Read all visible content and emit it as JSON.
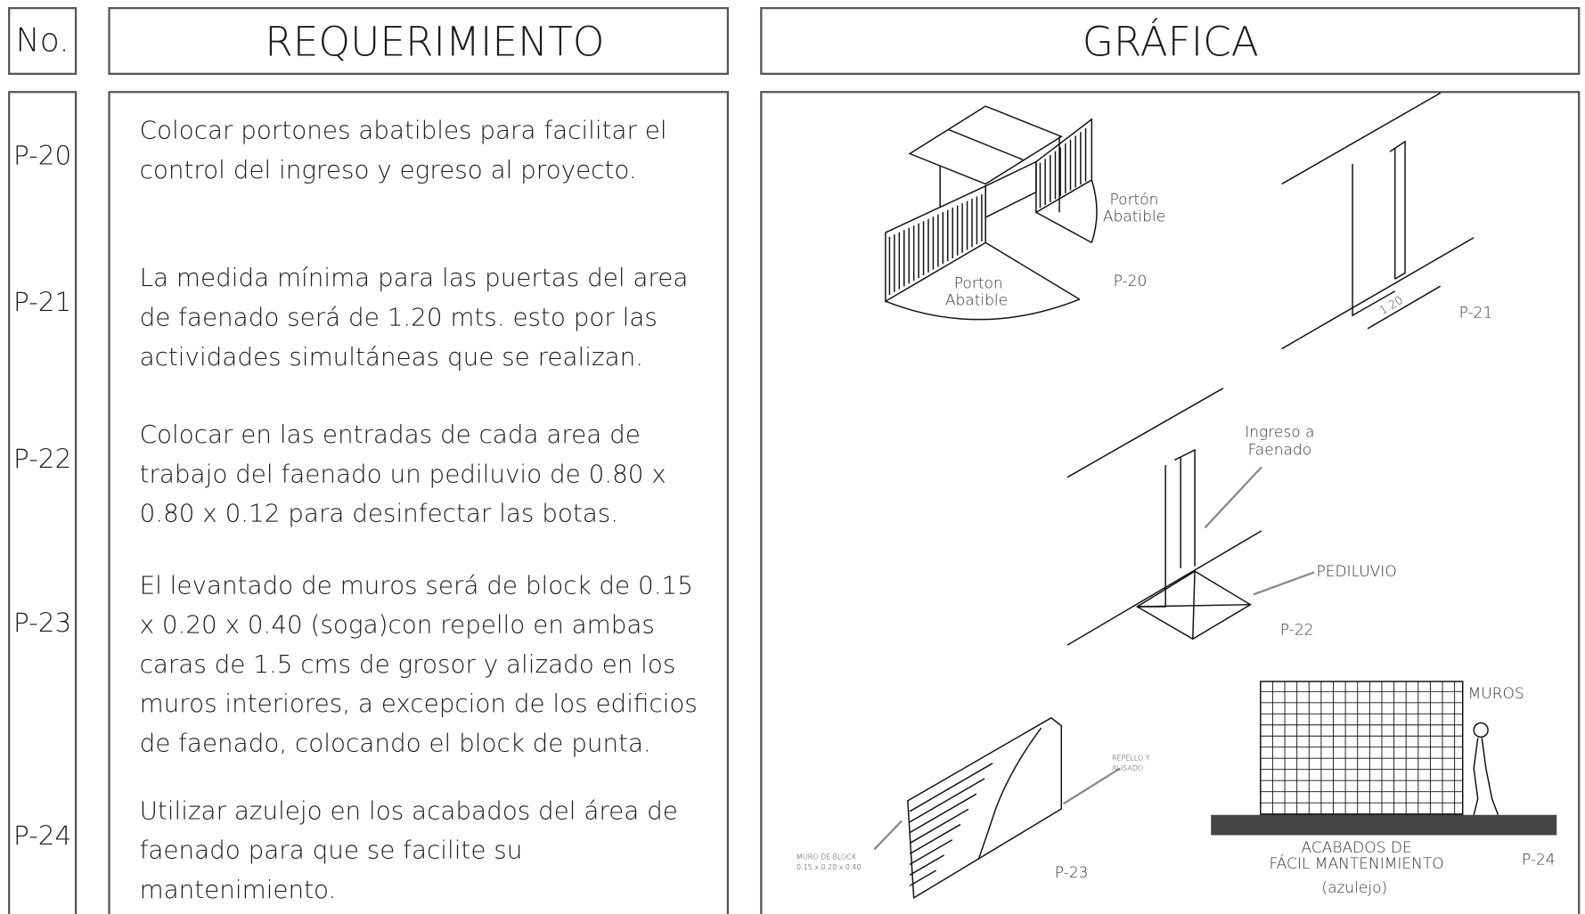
{
  "header": {
    "number": "No.",
    "requirement": "REQUERIMIENTO",
    "graphic": "GRÁFICA"
  },
  "rows": [
    {
      "code": "P-20",
      "lines": [
        "Colocar portones abatibles para facilitar el",
        "control del ingreso y egreso al proyecto."
      ]
    },
    {
      "code": "P-21",
      "lines": [
        "La medida mínima para las puertas del area",
        "de faenado será de 1.20 mts. esto por las",
        "actividades simultáneas que se realizan."
      ]
    },
    {
      "code": "P-22",
      "lines": [
        "Colocar en las entradas de cada area de",
        "trabajo del faenado un pediluvio de 0.80 x",
        "0.80 x 0.12 para desinfectar las botas."
      ]
    },
    {
      "code": "P-23",
      "lines": [
        "El levantado de muros será de block de 0.15",
        "x 0.20 x 0.40 (soga)con repello en ambas",
        "caras de 1.5 cms de grosor y alizado en los",
        "muros interiores, a excepcion de los edificios",
        "de faenado, colocando el block de punta."
      ]
    },
    {
      "code": "P-24",
      "lines": [
        "Utilizar azulejo en los acabados del área de",
        "faenado para que se facilite su",
        "mantenimiento."
      ]
    }
  ],
  "graphics": {
    "p20": {
      "gate_label": [
        "Portón",
        "Abatible"
      ],
      "gate_label_2": [
        "Porton",
        "Abatible"
      ],
      "code": "P-20"
    },
    "p21": {
      "dimension": "1.20",
      "code": "P-21"
    },
    "p22": {
      "entry_label": [
        "Ingreso a",
        "Faenado"
      ],
      "footbath_label": "PEDILUVIO",
      "code": "P-22"
    },
    "p23": {
      "plaster_label": [
        "REPELLO Y",
        "ALISADO"
      ],
      "wall_label": [
        "MURO DE BLOCK",
        "0.15 x 0.20 x 0.40"
      ],
      "code": "P-23"
    },
    "p24": {
      "walls_label": "MUROS",
      "finish_label": [
        "ACABADOS DE",
        "FÁCIL MANTENIMIENTO"
      ],
      "tile_label": "(azulejo)",
      "code": "P-24"
    }
  }
}
